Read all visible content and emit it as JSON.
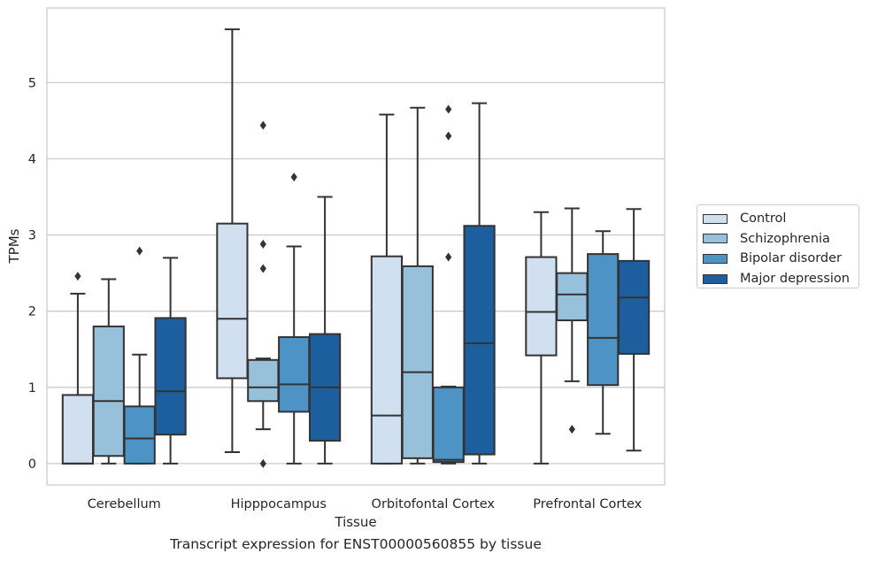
{
  "caption": "Transcript expression for ENST00000560855 by tissue",
  "colors": {
    "Control": "#d0e0f0",
    "Schizophrenia": "#97c0db",
    "Bipolar disorder": "#4d93c5",
    "Major depression": "#1c5e9e",
    "line": "#333333",
    "grid": "#cccccc"
  },
  "chart_data": {
    "type": "box",
    "title": "",
    "xlabel": "Tissue",
    "ylabel": "TPMs",
    "ylim": [
      -0.28,
      5.98
    ],
    "yticks": [
      0,
      1,
      2,
      3,
      4,
      5
    ],
    "grid": "horizontal",
    "legend_position": "right",
    "categories": [
      "Cerebellum",
      "Hipppocampus",
      "Orbitofontal Cortex",
      "Prefrontal Cortex"
    ],
    "series": [
      {
        "name": "Control",
        "boxes": [
          {
            "min": 0,
            "q1": 0,
            "median": 0,
            "q3": 0.9,
            "max": 2.23,
            "outliers": [
              2.46
            ]
          },
          {
            "min": 0.15,
            "q1": 1.12,
            "median": 1.9,
            "q3": 3.15,
            "max": 5.7,
            "outliers": []
          },
          {
            "min": 0,
            "q1": 0,
            "median": 0.63,
            "q3": 2.72,
            "max": 4.58,
            "outliers": []
          },
          {
            "min": 0,
            "q1": 1.42,
            "median": 1.99,
            "q3": 2.71,
            "max": 3.3,
            "outliers": []
          }
        ]
      },
      {
        "name": "Schizophrenia",
        "boxes": [
          {
            "min": 0,
            "q1": 0.1,
            "median": 0.82,
            "q3": 1.8,
            "max": 2.42,
            "outliers": []
          },
          {
            "min": 0.45,
            "q1": 0.82,
            "median": 1.0,
            "q3": 1.36,
            "max": 1.38,
            "outliers": [
              0,
              2.56,
              2.88,
              4.44
            ]
          },
          {
            "min": 0,
            "q1": 0.07,
            "median": 1.2,
            "q3": 2.59,
            "max": 4.67,
            "outliers": []
          },
          {
            "min": 1.08,
            "q1": 1.88,
            "median": 2.22,
            "q3": 2.5,
            "max": 3.35,
            "outliers": [
              0.45
            ]
          }
        ]
      },
      {
        "name": "Bipolar disorder",
        "boxes": [
          {
            "min": 0,
            "q1": 0,
            "median": 0.33,
            "q3": 0.75,
            "max": 1.43,
            "outliers": [
              2.79
            ]
          },
          {
            "min": 0,
            "q1": 0.68,
            "median": 1.04,
            "q3": 1.66,
            "max": 2.85,
            "outliers": [
              3.76
            ]
          },
          {
            "min": 0,
            "q1": 0.02,
            "median": 0.05,
            "q3": 1.0,
            "max": 1.01,
            "outliers": [
              2.71,
              4.3,
              4.65
            ]
          },
          {
            "min": 0.39,
            "q1": 1.03,
            "median": 1.65,
            "q3": 2.75,
            "max": 3.05,
            "outliers": []
          }
        ]
      },
      {
        "name": "Major depression",
        "boxes": [
          {
            "min": 0,
            "q1": 0.38,
            "median": 0.95,
            "q3": 1.91,
            "max": 2.7,
            "outliers": []
          },
          {
            "min": 0,
            "q1": 0.3,
            "median": 1.0,
            "q3": 1.7,
            "max": 3.5,
            "outliers": []
          },
          {
            "min": 0,
            "q1": 0.12,
            "median": 1.58,
            "q3": 3.12,
            "max": 4.73,
            "outliers": []
          },
          {
            "min": 0.17,
            "q1": 1.44,
            "median": 2.18,
            "q3": 2.66,
            "max": 3.34,
            "outliers": []
          }
        ]
      }
    ]
  }
}
